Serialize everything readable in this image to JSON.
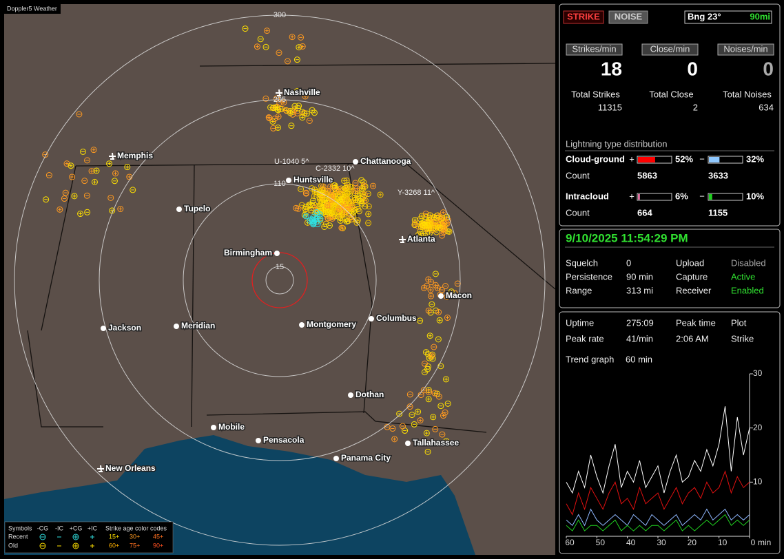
{
  "window_title": "Doppler5 Weather",
  "map": {
    "range_labels": [
      "300",
      "205",
      "110",
      "15"
    ],
    "cities": [
      "Nashville",
      "Memphis",
      "Chattanooga",
      "Huntsville",
      "Tupelo",
      "Birmingham",
      "Atlanta",
      "Macon",
      "Jackson",
      "Meridian",
      "Montgomery",
      "Columbus",
      "Dothan",
      "Mobile",
      "Pensacola",
      "Tallahassee",
      "Panama City",
      "New Orleans"
    ],
    "callouts": [
      "U-1040 5^",
      "C-2332 10^",
      "Y-3268 11^"
    ]
  },
  "legend": {
    "symbols_label": "Symbols",
    "types": [
      "-CG",
      "-IC",
      "+CG",
      "+IC"
    ],
    "age_title": "Strike age color codes",
    "rows": [
      {
        "label": "Recent",
        "ages": [
          "15+",
          "30+",
          "45+"
        ]
      },
      {
        "label": "Old",
        "ages": [
          "60+",
          "75+",
          "90+"
        ]
      }
    ]
  },
  "status": {
    "strike_button": "STRIKE",
    "noise_button": "NOISE",
    "bearing": "Bng 23°",
    "range": "90mi"
  },
  "rates": [
    {
      "label": "Strikes/min",
      "value": "18",
      "total_label": "Total Strikes",
      "total": "11315"
    },
    {
      "label": "Close/min",
      "value": "0",
      "total_label": "Total Close",
      "total": "2"
    },
    {
      "label": "Noises/min",
      "value": "0",
      "total_label": "Total Noises",
      "total": "634"
    }
  ],
  "distribution": {
    "title": "Lightning type distribution",
    "rows": [
      {
        "label": "Cloud-ground",
        "pos_sign": "+",
        "pos_pct": 52,
        "pos_pct_label": "52%",
        "neg_sign": "−",
        "neg_pct": 32,
        "neg_pct_label": "32%",
        "count_label": "Count",
        "pos_count": "5863",
        "neg_count": "3633"
      },
      {
        "label": "Intracloud",
        "pos_sign": "+",
        "pos_pct": 6,
        "pos_pct_label": "6%",
        "neg_sign": "−",
        "neg_pct": 10,
        "neg_pct_label": "10%",
        "count_label": "Count",
        "pos_count": "664",
        "neg_count": "1155"
      }
    ]
  },
  "station": {
    "datetime": "9/10/2025 11:54:29 PM",
    "settings": [
      [
        "Squelch",
        "0",
        "Upload",
        "Disabled"
      ],
      [
        "Persistence",
        "90 min",
        "Capture",
        "Active"
      ],
      [
        "Range",
        "313 mi",
        "Receiver",
        "Enabled"
      ]
    ]
  },
  "trend": {
    "stats": [
      [
        "Uptime",
        "275:09",
        "Peak time",
        "Plot"
      ],
      [
        "Peak rate",
        "41/min",
        "2:06 AM",
        "Strike"
      ]
    ],
    "graph_label": "Trend graph",
    "graph_span": "60 min"
  },
  "chart_data": {
    "type": "line",
    "x": [
      60,
      58,
      56,
      54,
      52,
      50,
      48,
      46,
      44,
      42,
      40,
      38,
      36,
      34,
      32,
      30,
      28,
      26,
      24,
      22,
      20,
      18,
      16,
      14,
      12,
      10,
      8,
      6,
      4,
      2,
      0
    ],
    "series": [
      {
        "color": "#ffffff",
        "values": [
          10,
          8,
          12,
          9,
          15,
          11,
          8,
          13,
          17,
          9,
          12,
          10,
          14,
          9,
          11,
          13,
          8,
          12,
          15,
          10,
          11,
          14,
          12,
          16,
          13,
          17,
          24,
          12,
          22,
          15,
          20
        ]
      },
      {
        "color": "#e01010",
        "values": [
          6,
          4,
          8,
          5,
          9,
          7,
          5,
          8,
          10,
          6,
          7,
          5,
          9,
          6,
          7,
          8,
          5,
          7,
          9,
          6,
          8,
          9,
          7,
          10,
          8,
          9,
          12,
          8,
          11,
          9,
          10
        ]
      },
      {
        "color": "#8fb8ff",
        "values": [
          3,
          2,
          4,
          2,
          5,
          3,
          2,
          3,
          4,
          3,
          2,
          4,
          3,
          2,
          4,
          3,
          2,
          3,
          4,
          2,
          3,
          4,
          3,
          5,
          3,
          4,
          5,
          3,
          4,
          3,
          4
        ]
      },
      {
        "color": "#20d020",
        "values": [
          2,
          1,
          3,
          1,
          2,
          2,
          1,
          2,
          3,
          1,
          2,
          1,
          2,
          1,
          2,
          2,
          1,
          2,
          3,
          1,
          2,
          1,
          2,
          3,
          2,
          3,
          4,
          2,
          3,
          2,
          3
        ]
      }
    ],
    "xlim": [
      60,
      0
    ],
    "xticks": [
      60,
      50,
      40,
      30,
      20,
      10,
      0
    ],
    "xlabel": "min",
    "ylim": [
      0,
      30
    ],
    "yticks": [
      10,
      20,
      30
    ]
  }
}
